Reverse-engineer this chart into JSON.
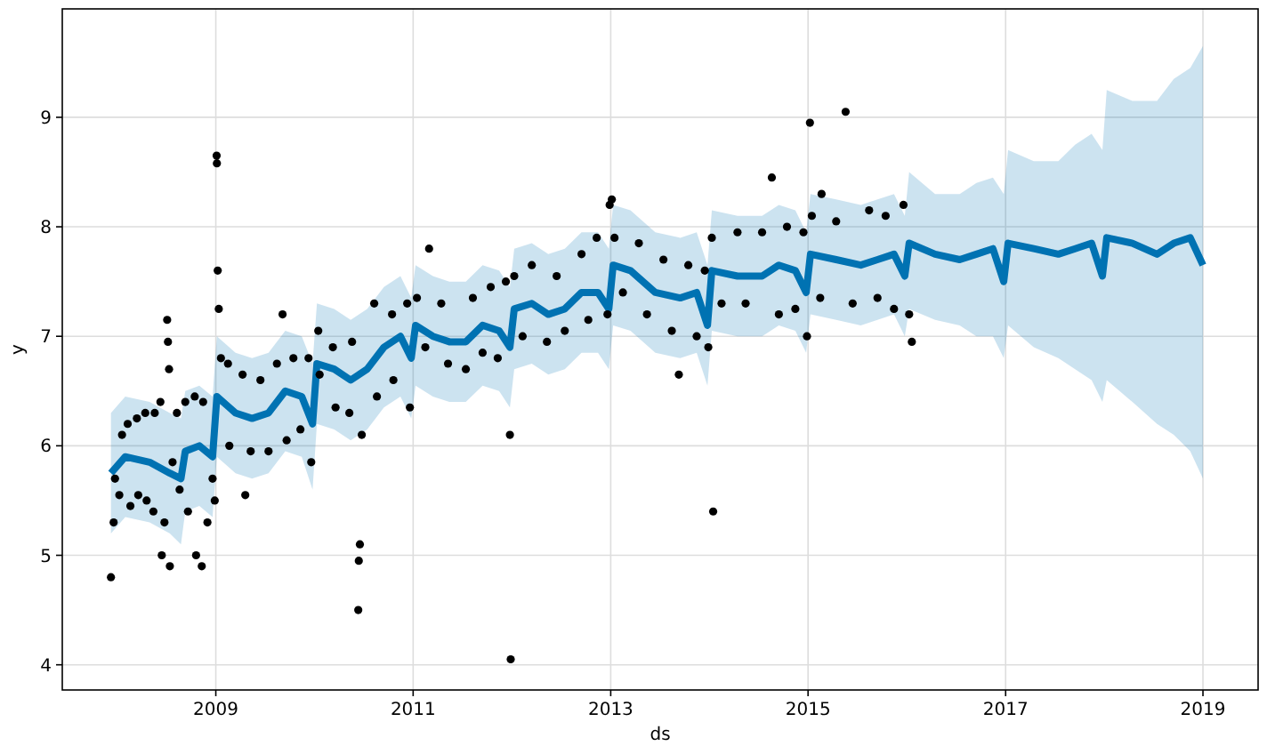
{
  "chart_data": {
    "type": "line",
    "xlabel": "ds",
    "ylabel": "y",
    "xlim": [
      "2007-06-13",
      "2019-07-24"
    ],
    "ylim": [
      3.77,
      9.99
    ],
    "xticks": [
      "2009",
      "2011",
      "2013",
      "2015",
      "2017",
      "2019"
    ],
    "yticks": [
      4,
      5,
      6,
      7,
      8,
      9
    ],
    "grid": true,
    "series": [
      {
        "color": "#0072b2",
        "x": [
          "2007-12-10",
          "2008-02-01",
          "2008-05-01",
          "2008-07-15",
          "2008-08-25",
          "2008-09-10",
          "2008-11-01",
          "2008-12-20",
          "2009-01-05",
          "2009-03-15",
          "2009-05-15",
          "2009-07-15",
          "2009-09-15",
          "2009-11-15",
          "2009-12-25",
          "2010-01-10",
          "2010-03-15",
          "2010-05-15",
          "2010-07-15",
          "2010-09-15",
          "2010-11-15",
          "2010-12-25",
          "2011-01-10",
          "2011-03-15",
          "2011-05-15",
          "2011-07-15",
          "2011-09-15",
          "2011-11-15",
          "2011-12-25",
          "2012-01-10",
          "2012-03-15",
          "2012-05-15",
          "2012-07-15",
          "2012-09-15",
          "2012-11-15",
          "2012-12-25",
          "2013-01-10",
          "2013-03-15",
          "2013-06-15",
          "2013-09-15",
          "2013-11-15",
          "2013-12-25",
          "2014-01-10",
          "2014-04-15",
          "2014-07-15",
          "2014-09-15",
          "2014-11-15",
          "2014-12-25",
          "2015-01-10",
          "2015-04-15",
          "2015-07-15",
          "2015-09-15",
          "2015-11-15",
          "2015-12-25",
          "2016-01-10",
          "2016-04-15",
          "2016-07-15",
          "2016-09-15",
          "2016-11-15",
          "2016-12-25",
          "2017-01-10",
          "2017-04-15",
          "2017-07-15",
          "2017-09-15",
          "2017-11-15",
          "2017-12-25",
          "2018-01-10",
          "2018-04-15",
          "2018-07-15",
          "2018-09-15",
          "2018-11-15",
          "2019-01-01"
        ],
        "values": [
          5.75,
          5.9,
          5.85,
          5.75,
          5.7,
          5.95,
          6.0,
          5.9,
          6.45,
          6.3,
          6.25,
          6.3,
          6.5,
          6.45,
          6.2,
          6.75,
          6.7,
          6.6,
          6.7,
          6.9,
          7.0,
          6.8,
          7.1,
          7.0,
          6.95,
          6.95,
          7.1,
          7.05,
          6.9,
          7.25,
          7.3,
          7.2,
          7.25,
          7.4,
          7.4,
          7.25,
          7.65,
          7.6,
          7.4,
          7.35,
          7.4,
          7.1,
          7.6,
          7.55,
          7.55,
          7.65,
          7.6,
          7.4,
          7.75,
          7.7,
          7.65,
          7.7,
          7.75,
          7.55,
          7.85,
          7.75,
          7.7,
          7.75,
          7.8,
          7.5,
          7.85,
          7.8,
          7.75,
          7.8,
          7.85,
          7.55,
          7.9,
          7.85,
          7.75,
          7.85,
          7.9,
          7.65
        ],
        "lower": [
          5.2,
          5.35,
          5.3,
          5.2,
          5.1,
          5.4,
          5.45,
          5.35,
          5.9,
          5.75,
          5.7,
          5.75,
          5.95,
          5.9,
          5.6,
          6.2,
          6.15,
          6.05,
          6.15,
          6.35,
          6.45,
          6.25,
          6.55,
          6.45,
          6.4,
          6.4,
          6.55,
          6.5,
          6.35,
          6.7,
          6.75,
          6.65,
          6.7,
          6.85,
          6.85,
          6.7,
          7.1,
          7.05,
          6.85,
          6.8,
          6.85,
          6.55,
          7.05,
          7.0,
          7.0,
          7.1,
          7.05,
          6.85,
          7.2,
          7.15,
          7.1,
          7.15,
          7.2,
          7.0,
          7.25,
          7.15,
          7.1,
          7.0,
          7.0,
          6.8,
          7.1,
          6.9,
          6.8,
          6.7,
          6.6,
          6.4,
          6.6,
          6.4,
          6.2,
          6.1,
          5.95,
          5.7
        ],
        "upper": [
          6.3,
          6.45,
          6.4,
          6.3,
          6.25,
          6.5,
          6.55,
          6.45,
          7.0,
          6.85,
          6.8,
          6.85,
          7.05,
          7.0,
          6.75,
          7.3,
          7.25,
          7.15,
          7.25,
          7.45,
          7.55,
          7.35,
          7.65,
          7.55,
          7.5,
          7.5,
          7.65,
          7.6,
          7.45,
          7.8,
          7.85,
          7.75,
          7.8,
          7.95,
          7.95,
          7.8,
          8.2,
          8.15,
          7.95,
          7.9,
          7.95,
          7.65,
          8.15,
          8.1,
          8.1,
          8.2,
          8.15,
          7.95,
          8.3,
          8.25,
          8.2,
          8.25,
          8.3,
          8.1,
          8.5,
          8.3,
          8.3,
          8.4,
          8.45,
          8.3,
          8.7,
          8.6,
          8.6,
          8.75,
          8.85,
          8.7,
          9.25,
          9.15,
          9.15,
          9.35,
          9.45,
          9.65
        ]
      },
      {
        "type": "scatter",
        "color": "#000000",
        "marker": "circle",
        "x": [
          "2007-12-10",
          "2007-12-20",
          "2007-12-25",
          "2008-01-10",
          "2008-01-20",
          "2008-02-10",
          "2008-02-20",
          "2008-03-15",
          "2008-03-20",
          "2008-04-15",
          "2008-04-20",
          "2008-05-15",
          "2008-05-20",
          "2008-06-10",
          "2008-06-15",
          "2008-06-25",
          "2008-07-05",
          "2008-07-08",
          "2008-07-12",
          "2008-07-15",
          "2008-07-25",
          "2008-08-10",
          "2008-08-20",
          "2008-09-10",
          "2008-09-20",
          "2008-10-15",
          "2008-10-20",
          "2008-11-10",
          "2008-11-15",
          "2008-12-01",
          "2008-12-20",
          "2008-12-28",
          "2009-01-04",
          "2009-01-05",
          "2009-01-08",
          "2009-01-12",
          "2009-01-20",
          "2009-02-15",
          "2009-02-20",
          "2009-04-10",
          "2009-04-20",
          "2009-05-10",
          "2009-06-15",
          "2009-07-15",
          "2009-08-15",
          "2009-09-05",
          "2009-09-20",
          "2009-10-15",
          "2009-11-10",
          "2009-12-10",
          "2009-12-20",
          "2010-01-15",
          "2010-01-20",
          "2010-03-10",
          "2010-03-20",
          "2010-05-10",
          "2010-05-20",
          "2010-06-12",
          "2010-06-14",
          "2010-06-18",
          "2010-06-25",
          "2010-08-10",
          "2010-08-20",
          "2010-10-15",
          "2010-10-20",
          "2010-12-10",
          "2010-12-20",
          "2011-01-15",
          "2011-02-15",
          "2011-03-01",
          "2011-04-15",
          "2011-05-10",
          "2011-07-15",
          "2011-08-10",
          "2011-09-15",
          "2011-10-15",
          "2011-11-10",
          "2011-12-10",
          "2011-12-25",
          "2011-12-28",
          "2012-01-10",
          "2012-02-10",
          "2012-03-15",
          "2012-05-10",
          "2012-06-15",
          "2012-07-15",
          "2012-09-15",
          "2012-10-10",
          "2012-11-10",
          "2012-12-20",
          "2012-12-28",
          "2013-01-05",
          "2013-01-15",
          "2013-02-15",
          "2013-04-15",
          "2013-05-15",
          "2013-07-15",
          "2013-08-15",
          "2013-09-10",
          "2013-10-15",
          "2013-11-15",
          "2013-12-15",
          "2013-12-28",
          "2014-01-10",
          "2014-01-15",
          "2014-02-15",
          "2014-04-15",
          "2014-05-15",
          "2014-07-15",
          "2014-08-20",
          "2014-09-15",
          "2014-10-15",
          "2014-11-15",
          "2014-12-15",
          "2014-12-28",
          "2015-01-08",
          "2015-01-15",
          "2015-02-15",
          "2015-02-20",
          "2015-04-15",
          "2015-05-20",
          "2015-06-15",
          "2015-08-15",
          "2015-09-15",
          "2015-10-15",
          "2015-11-15",
          "2015-12-20",
          "2016-01-10",
          "2016-01-20"
        ],
        "values": [
          4.8,
          5.3,
          5.7,
          5.55,
          6.1,
          6.2,
          5.45,
          6.25,
          5.55,
          6.3,
          5.5,
          5.4,
          6.3,
          6.4,
          5.0,
          5.3,
          7.15,
          6.95,
          6.7,
          4.9,
          5.85,
          6.3,
          5.6,
          6.4,
          5.4,
          6.45,
          5.0,
          4.9,
          6.4,
          5.3,
          5.7,
          5.5,
          8.65,
          8.58,
          7.6,
          7.25,
          6.8,
          6.75,
          6.0,
          6.65,
          5.55,
          5.95,
          6.6,
          5.95,
          6.75,
          7.2,
          6.05,
          6.8,
          6.15,
          6.8,
          5.85,
          7.05,
          6.65,
          6.9,
          6.35,
          6.3,
          6.95,
          4.5,
          4.95,
          5.1,
          6.1,
          7.3,
          6.45,
          7.2,
          6.6,
          7.3,
          6.35,
          7.35,
          6.9,
          7.8,
          7.3,
          6.75,
          6.7,
          7.35,
          6.85,
          7.45,
          6.8,
          7.5,
          6.1,
          4.05,
          7.55,
          7.0,
          7.65,
          6.95,
          7.55,
          7.05,
          7.75,
          7.15,
          7.9,
          7.2,
          8.2,
          8.25,
          7.9,
          7.4,
          7.85,
          7.2,
          7.7,
          7.05,
          6.65,
          7.65,
          7.0,
          7.6,
          6.9,
          7.9,
          5.4,
          7.3,
          7.95,
          7.3,
          7.95,
          8.45,
          7.2,
          8.0,
          7.25,
          7.95,
          7.0,
          8.95,
          8.1,
          7.35,
          8.3,
          8.05,
          9.05,
          7.3,
          8.15,
          7.35,
          8.1,
          7.25,
          8.2,
          7.2,
          6.95
        ]
      }
    ]
  }
}
